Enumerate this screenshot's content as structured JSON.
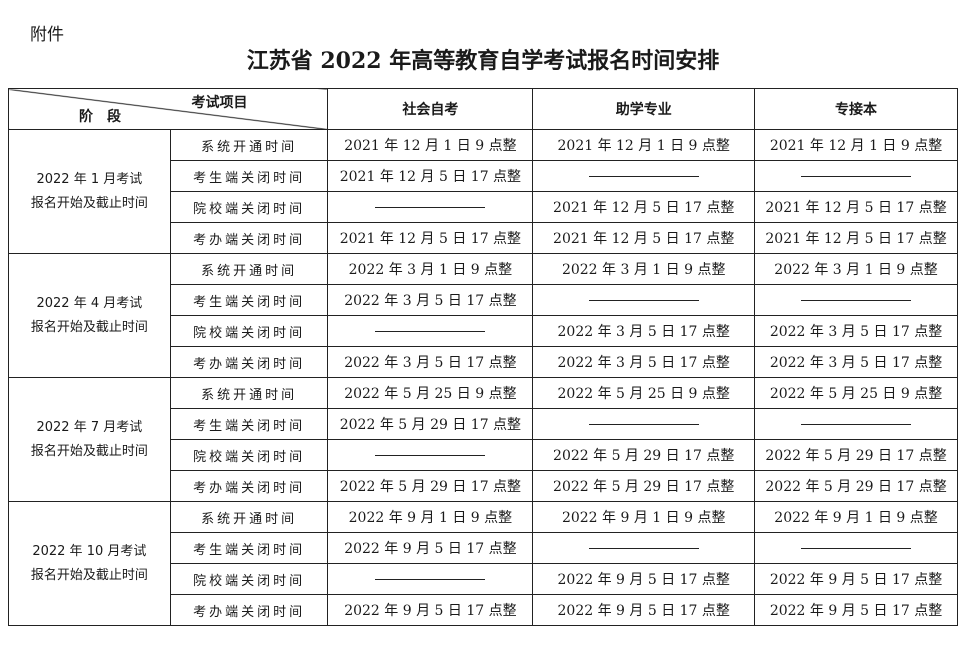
{
  "attachment": "附件",
  "title": "江苏省 2022 年高等教育自学考试报名时间安排",
  "header": {
    "item": "考试项目",
    "stage": "阶　段",
    "cols": [
      "社会自考",
      "助学专业",
      "专接本"
    ]
  },
  "groups": [
    {
      "stage_line1": "2022 年 1 月考试",
      "stage_line2": "报名开始及截止时间",
      "rows": [
        {
          "item": "系统开通时间",
          "values": [
            "2021 年 12 月 1 日 9 点整",
            "2021 年 12 月 1 日 9 点整",
            "2021 年 12 月 1 日 9 点整"
          ]
        },
        {
          "item": "考生端关闭时间",
          "values": [
            "2021 年 12 月 5 日 17 点整",
            "",
            ""
          ]
        },
        {
          "item": "院校端关闭时间",
          "values": [
            "",
            "2021 年 12 月 5 日 17 点整",
            "2021 年 12 月 5 日 17 点整"
          ]
        },
        {
          "item": "考办端关闭时间",
          "values": [
            "2021 年 12 月 5 日 17 点整",
            "2021 年 12 月 5 日 17 点整",
            "2021 年 12 月 5 日 17 点整"
          ]
        }
      ]
    },
    {
      "stage_line1": "2022 年 4 月考试",
      "stage_line2": "报名开始及截止时间",
      "rows": [
        {
          "item": "系统开通时间",
          "values": [
            "2022 年 3 月 1 日 9 点整",
            "2022 年 3 月 1 日 9 点整",
            "2022 年 3 月 1 日 9 点整"
          ]
        },
        {
          "item": "考生端关闭时间",
          "values": [
            "2022 年 3 月 5 日 17 点整",
            "",
            ""
          ]
        },
        {
          "item": "院校端关闭时间",
          "values": [
            "",
            "2022 年 3 月 5 日 17 点整",
            "2022 年 3 月 5 日 17 点整"
          ]
        },
        {
          "item": "考办端关闭时间",
          "values": [
            "2022 年 3 月 5 日 17 点整",
            "2022 年 3 月 5 日 17 点整",
            "2022 年 3 月 5 日 17 点整"
          ]
        }
      ]
    },
    {
      "stage_line1": "2022 年 7 月考试",
      "stage_line2": "报名开始及截止时间",
      "rows": [
        {
          "item": "系统开通时间",
          "values": [
            "2022 年 5 月 25 日 9 点整",
            "2022 年 5 月 25 日 9 点整",
            "2022 年 5 月 25 日 9 点整"
          ]
        },
        {
          "item": "考生端关闭时间",
          "values": [
            "2022 年 5 月 29 日 17 点整",
            "",
            ""
          ]
        },
        {
          "item": "院校端关闭时间",
          "values": [
            "",
            "2022 年 5 月 29 日 17 点整",
            "2022 年 5 月 29 日 17 点整"
          ]
        },
        {
          "item": "考办端关闭时间",
          "values": [
            "2022 年 5 月 29 日 17 点整",
            "2022 年 5 月 29 日 17 点整",
            "2022 年 5 月 29 日 17 点整"
          ]
        }
      ]
    },
    {
      "stage_line1": "2022 年 10 月考试",
      "stage_line2": "报名开始及截止时间",
      "rows": [
        {
          "item": "系统开通时间",
          "values": [
            "2022 年 9 月 1 日 9 点整",
            "2022 年 9 月 1 日 9 点整",
            "2022 年 9 月 1 日 9 点整"
          ]
        },
        {
          "item": "考生端关闭时间",
          "values": [
            "2022 年 9 月 5 日 17 点整",
            "",
            ""
          ]
        },
        {
          "item": "院校端关闭时间",
          "values": [
            "",
            "2022 年 9 月 5 日 17 点整",
            "2022 年 9 月 5 日 17 点整"
          ]
        },
        {
          "item": "考办端关闭时间",
          "values": [
            "2022 年 9 月 5 日 17 点整",
            "2022 年 9 月 5 日 17 点整",
            "2022 年 9 月 5 日 17 点整"
          ]
        }
      ]
    }
  ]
}
